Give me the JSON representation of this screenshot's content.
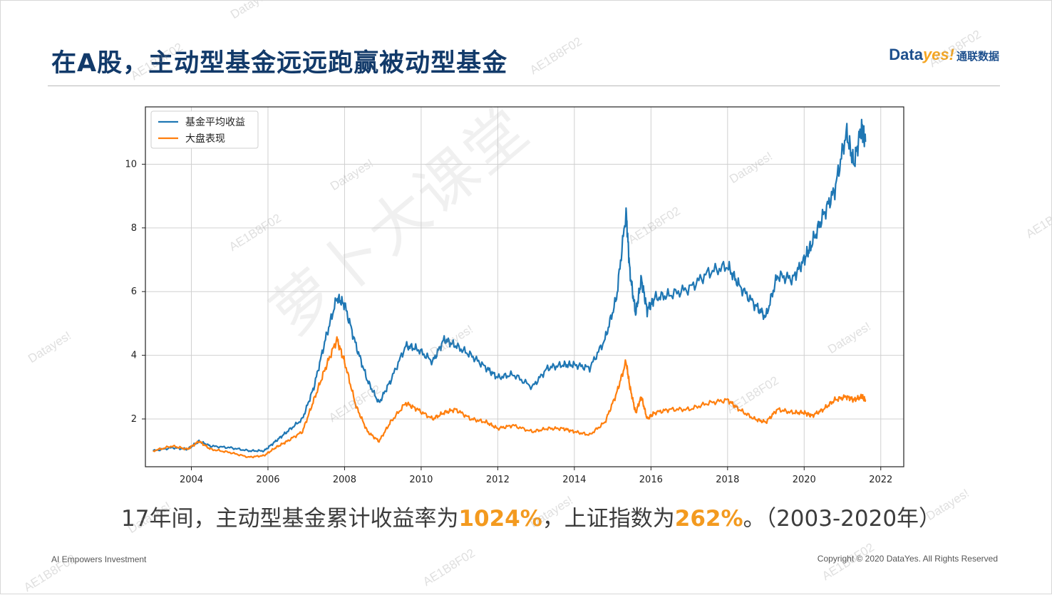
{
  "header": {
    "title": "在A股，主动型基金远远跑赢被动型基金",
    "brand_data": "Data",
    "brand_yes": "yes!",
    "brand_cn": "通联数据"
  },
  "summary": {
    "part1": "17年间，主动型基金累计收益率为",
    "fund_return": "1024%",
    "part2": "，上证指数为",
    "index_return": "262%",
    "part3": "。（2003-2020年）"
  },
  "footer": {
    "left": "AI Empowers Investment",
    "right": "Copyright © 2020 DataYes. All Rights Reserved"
  },
  "watermarks": {
    "brand": "Datayes!",
    "code": "AE1B8F02",
    "center": "萝卜大课堂"
  },
  "chart_data": {
    "type": "line",
    "title": "",
    "xlabel": "",
    "ylabel": "",
    "xlim": [
      2002.8,
      2022.6
    ],
    "ylim": [
      0.5,
      11.8
    ],
    "x_ticks": [
      2004,
      2006,
      2008,
      2010,
      2012,
      2014,
      2016,
      2018,
      2020,
      2022
    ],
    "y_ticks": [
      2,
      4,
      6,
      8,
      10
    ],
    "grid": true,
    "legend_position": "upper-left",
    "series": [
      {
        "name": "基金平均收益",
        "color": "#1f77b4",
        "x": [
          2003.0,
          2003.5,
          2003.9,
          2004.2,
          2004.5,
          2005.0,
          2005.5,
          2005.9,
          2006.2,
          2006.5,
          2006.9,
          2007.2,
          2007.5,
          2007.8,
          2008.0,
          2008.3,
          2008.6,
          2008.9,
          2009.2,
          2009.6,
          2009.9,
          2010.3,
          2010.6,
          2010.9,
          2011.3,
          2011.7,
          2012.0,
          2012.4,
          2012.9,
          2013.3,
          2013.7,
          2014.0,
          2014.4,
          2014.8,
          2015.1,
          2015.35,
          2015.45,
          2015.6,
          2015.75,
          2015.9,
          2016.1,
          2016.5,
          2017.0,
          2017.5,
          2018.0,
          2018.3,
          2018.7,
          2019.0,
          2019.3,
          2019.7,
          2020.0,
          2020.2,
          2020.5,
          2020.8,
          2021.1,
          2021.3,
          2021.5,
          2021.6
        ],
        "y": [
          1.0,
          1.1,
          1.05,
          1.3,
          1.15,
          1.1,
          1.0,
          1.0,
          1.3,
          1.6,
          2.0,
          3.0,
          4.5,
          5.8,
          5.6,
          4.3,
          3.2,
          2.5,
          3.2,
          4.3,
          4.2,
          3.8,
          4.5,
          4.3,
          4.0,
          3.6,
          3.3,
          3.4,
          3.0,
          3.6,
          3.7,
          3.7,
          3.6,
          4.5,
          5.8,
          8.5,
          6.6,
          5.3,
          6.4,
          5.4,
          5.8,
          5.9,
          6.1,
          6.6,
          6.8,
          6.2,
          5.6,
          5.2,
          6.5,
          6.4,
          7.0,
          7.5,
          8.4,
          9.2,
          11.0,
          10.0,
          11.2,
          10.7
        ]
      },
      {
        "name": "大盘表现",
        "color": "#ff7f0e",
        "x": [
          2003.0,
          2003.5,
          2003.9,
          2004.2,
          2004.5,
          2005.0,
          2005.5,
          2005.9,
          2006.2,
          2006.5,
          2006.9,
          2007.2,
          2007.5,
          2007.8,
          2008.0,
          2008.3,
          2008.6,
          2008.9,
          2009.2,
          2009.6,
          2009.9,
          2010.3,
          2010.6,
          2010.9,
          2011.3,
          2011.7,
          2012.0,
          2012.4,
          2012.9,
          2013.3,
          2013.7,
          2014.0,
          2014.4,
          2014.8,
          2015.1,
          2015.35,
          2015.45,
          2015.6,
          2015.75,
          2015.9,
          2016.1,
          2016.5,
          2017.0,
          2017.5,
          2018.0,
          2018.3,
          2018.7,
          2019.0,
          2019.3,
          2019.7,
          2020.0,
          2020.2,
          2020.5,
          2020.8,
          2021.1,
          2021.3,
          2021.5,
          2021.6
        ],
        "y": [
          1.0,
          1.15,
          1.05,
          1.3,
          1.05,
          0.95,
          0.8,
          0.85,
          1.1,
          1.3,
          1.6,
          2.6,
          3.6,
          4.5,
          3.8,
          2.4,
          1.6,
          1.3,
          1.9,
          2.5,
          2.3,
          2.0,
          2.2,
          2.3,
          2.0,
          1.9,
          1.7,
          1.8,
          1.6,
          1.7,
          1.7,
          1.6,
          1.5,
          1.9,
          2.8,
          3.8,
          3.0,
          2.2,
          2.7,
          2.0,
          2.2,
          2.3,
          2.3,
          2.5,
          2.6,
          2.3,
          2.0,
          1.9,
          2.3,
          2.2,
          2.2,
          2.1,
          2.3,
          2.6,
          2.7,
          2.6,
          2.7,
          2.6
        ]
      }
    ]
  }
}
